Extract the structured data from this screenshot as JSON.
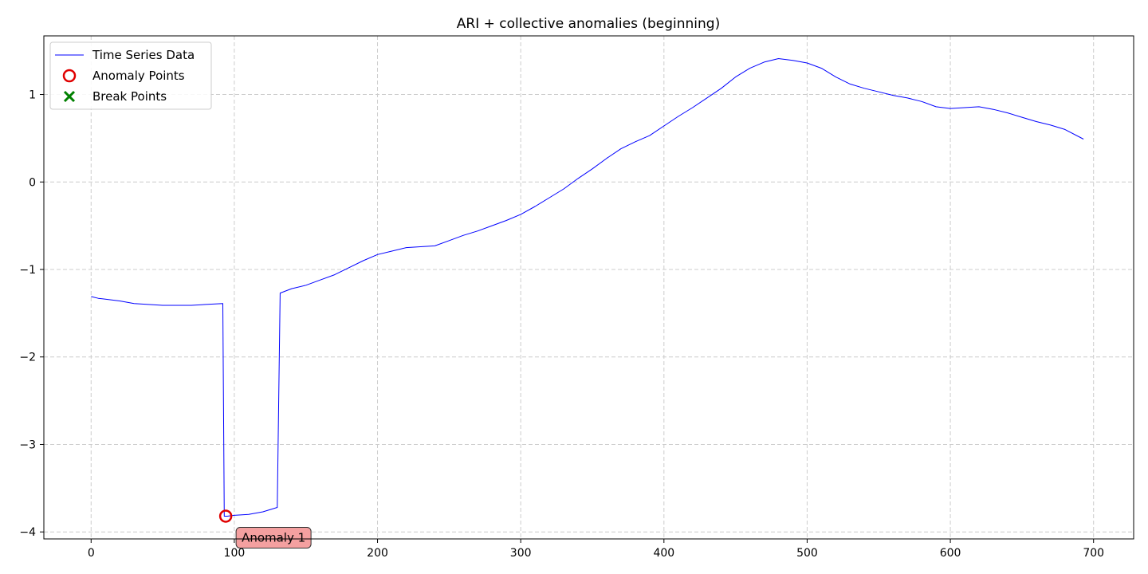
{
  "chart_data": {
    "type": "line",
    "title": "ARI + collective anomalies (beginning)",
    "xlabel": "",
    "ylabel": "",
    "xlim": [
      -33,
      728
    ],
    "ylim": [
      -4.08,
      1.67
    ],
    "xticks": [
      0,
      100,
      200,
      300,
      400,
      500,
      600,
      700
    ],
    "yticks": [
      -4,
      -3,
      -2,
      -1,
      0,
      1
    ],
    "grid": true,
    "legend_position": "top-left",
    "colors": {
      "series": "#0000ff",
      "anomaly": "#e00000",
      "break": "#008000",
      "grid": "#cccccc",
      "annotation_fill": "#f4a0a0"
    },
    "legend": [
      {
        "label": "Time Series Data",
        "marker": "line"
      },
      {
        "label": "Anomaly Points",
        "marker": "circle"
      },
      {
        "label": "Break Points",
        "marker": "x"
      }
    ],
    "series": [
      {
        "name": "Time Series Data",
        "points": [
          [
            0,
            -1.31
          ],
          [
            5,
            -1.33
          ],
          [
            10,
            -1.34
          ],
          [
            20,
            -1.36
          ],
          [
            30,
            -1.39
          ],
          [
            40,
            -1.4
          ],
          [
            50,
            -1.41
          ],
          [
            60,
            -1.41
          ],
          [
            70,
            -1.41
          ],
          [
            80,
            -1.4
          ],
          [
            92,
            -1.39
          ],
          [
            93,
            -3.82
          ],
          [
            95,
            -3.82
          ],
          [
            100,
            -3.81
          ],
          [
            110,
            -3.8
          ],
          [
            120,
            -3.77
          ],
          [
            130,
            -3.72
          ],
          [
            132,
            -1.27
          ],
          [
            140,
            -1.22
          ],
          [
            150,
            -1.18
          ],
          [
            160,
            -1.12
          ],
          [
            170,
            -1.06
          ],
          [
            180,
            -0.98
          ],
          [
            190,
            -0.9
          ],
          [
            200,
            -0.83
          ],
          [
            210,
            -0.79
          ],
          [
            220,
            -0.75
          ],
          [
            230,
            -0.74
          ],
          [
            240,
            -0.73
          ],
          [
            250,
            -0.67
          ],
          [
            260,
            -0.61
          ],
          [
            270,
            -0.56
          ],
          [
            280,
            -0.5
          ],
          [
            290,
            -0.44
          ],
          [
            300,
            -0.37
          ],
          [
            310,
            -0.28
          ],
          [
            320,
            -0.18
          ],
          [
            330,
            -0.08
          ],
          [
            340,
            0.04
          ],
          [
            350,
            0.15
          ],
          [
            360,
            0.27
          ],
          [
            370,
            0.38
          ],
          [
            380,
            0.46
          ],
          [
            390,
            0.53
          ],
          [
            400,
            0.64
          ],
          [
            410,
            0.75
          ],
          [
            420,
            0.85
          ],
          [
            430,
            0.96
          ],
          [
            440,
            1.07
          ],
          [
            450,
            1.2
          ],
          [
            460,
            1.3
          ],
          [
            470,
            1.37
          ],
          [
            480,
            1.41
          ],
          [
            490,
            1.39
          ],
          [
            500,
            1.36
          ],
          [
            510,
            1.3
          ],
          [
            520,
            1.2
          ],
          [
            530,
            1.12
          ],
          [
            540,
            1.07
          ],
          [
            550,
            1.03
          ],
          [
            560,
            0.99
          ],
          [
            570,
            0.96
          ],
          [
            580,
            0.92
          ],
          [
            590,
            0.86
          ],
          [
            600,
            0.84
          ],
          [
            610,
            0.85
          ],
          [
            620,
            0.86
          ],
          [
            630,
            0.83
          ],
          [
            640,
            0.79
          ],
          [
            650,
            0.74
          ],
          [
            660,
            0.69
          ],
          [
            670,
            0.65
          ],
          [
            680,
            0.6
          ],
          [
            693,
            0.49
          ]
        ]
      }
    ],
    "anomaly_points": [
      {
        "x": 94,
        "y": -3.82,
        "label": "Anomaly 1"
      }
    ],
    "break_points": []
  }
}
